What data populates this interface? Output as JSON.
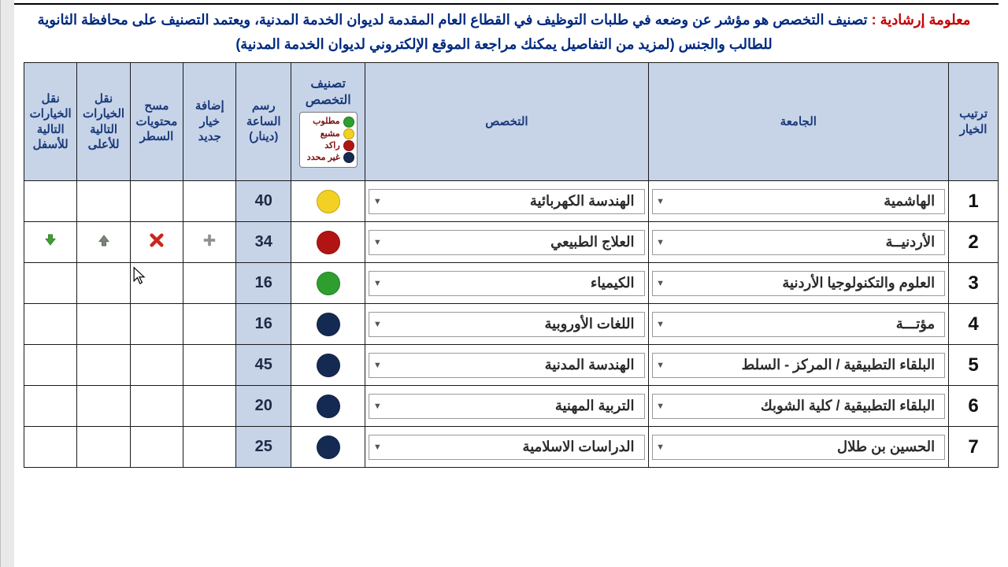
{
  "info": {
    "lead": "معلومة إرشادية :",
    "body": "تصنيف التخصص هو مؤشر عن وضعه في طلبات التوظيف في القطاع العام المقدمة لديوان الخدمة المدنية، ويعتمد التصنيف على محافظة الثانوية للطالب والجنس (لمزيد من التفاصيل يمكنك مراجعة الموقع الإلكتروني لديوان الخدمة المدنية)"
  },
  "headers": {
    "rank": "ترتيب الخيار",
    "university": "الجامعة",
    "major": "التخصص",
    "classification": "تصنيف التخصص",
    "fee": "رسم الساعة (دينار)",
    "add": "إضافة خيار جديد",
    "clear": "مسح محتويات السطر",
    "up": "نقل الخيارات التالية للأعلى",
    "down": "نقل الخيارات التالية للأسفل"
  },
  "legend": [
    {
      "label": "مطلوب",
      "color": "#2e9e2e"
    },
    {
      "label": "مشبع",
      "color": "#f3d024"
    },
    {
      "label": "راكد",
      "color": "#b21414"
    },
    {
      "label": "غير محدد",
      "color": "#142a52"
    }
  ],
  "legend_border": "#7a7a7a",
  "colors": {
    "header_bg": "#c7d4e8",
    "header_text": "#1b3a7a",
    "border": "#1a1a1a",
    "info_text": "#002a80",
    "info_lead": "#c40000",
    "green": "#2e9e2e",
    "yellow": "#f3d024",
    "red": "#b21414",
    "navy": "#142a52",
    "add_icon": "#8f8f8f",
    "del_icon": "#c9261b",
    "up_icon": "#7f7f7f",
    "down_icon": "#39a22a"
  },
  "active_row_index": 1,
  "rows": [
    {
      "rank": "1",
      "university": "الهاشمية",
      "major": "الهندسة الكهربائية",
      "class_color": "#f3d024",
      "fee": "40"
    },
    {
      "rank": "2",
      "university": "الأردنيــة",
      "major": "العلاج الطبيعي",
      "class_color": "#b21414",
      "fee": "34"
    },
    {
      "rank": "3",
      "university": "العلوم والتكنولوجيا الأردنية",
      "major": "الكيمياء",
      "class_color": "#2e9e2e",
      "fee": "16"
    },
    {
      "rank": "4",
      "university": "مؤتـــة",
      "major": "اللغات الأوروبية",
      "class_color": "#142a52",
      "fee": "16"
    },
    {
      "rank": "5",
      "university": "البلقاء التطبيقية / المركز - السلط",
      "major": "الهندسة المدنية",
      "class_color": "#142a52",
      "fee": "45"
    },
    {
      "rank": "6",
      "university": "البلقاء التطبيقية / كلية الشوبك",
      "major": "التربية المهنية",
      "class_color": "#142a52",
      "fee": "20"
    },
    {
      "rank": "7",
      "university": "الحسين بن طلال",
      "major": "الدراسات الاسلامية",
      "class_color": "#142a52",
      "fee": "25"
    }
  ]
}
